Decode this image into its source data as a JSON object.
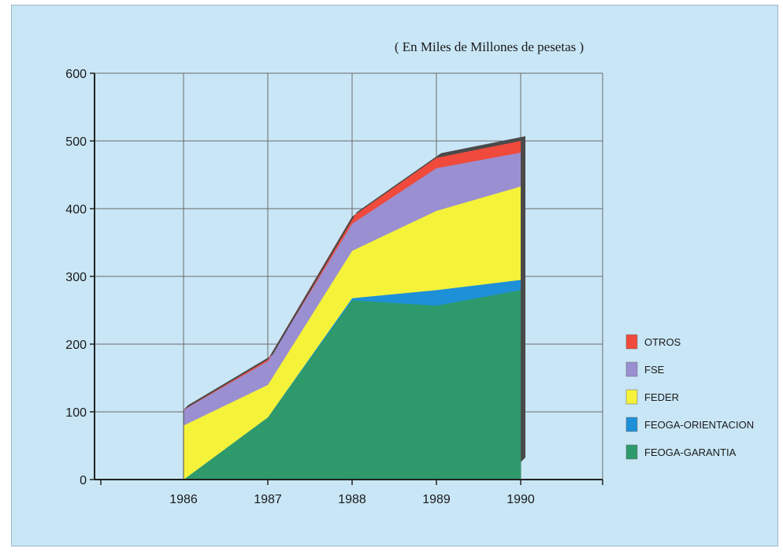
{
  "chart_data": {
    "type": "area",
    "stacked": true,
    "subtitle": "( En Miles de Millones de pesetas )",
    "x": [
      "1986",
      "1987",
      "1988",
      "1989",
      "1990"
    ],
    "ylim": [
      0,
      600
    ],
    "yticks": [
      "0",
      "100",
      "200",
      "300",
      "400",
      "500",
      "600"
    ],
    "grid": true,
    "legend_position": "right",
    "series": [
      {
        "name": "FEOGA-GARANTIA",
        "color": "#2e9a6c",
        "values": [
          0,
          92,
          265,
          257,
          280
        ]
      },
      {
        "name": "FEOGA-ORIENTACION",
        "color": "#1e90d8",
        "values": [
          0,
          0,
          3,
          23,
          15
        ]
      },
      {
        "name": "FEDER",
        "color": "#f5f23a",
        "values": [
          80,
          48,
          70,
          117,
          138
        ]
      },
      {
        "name": "FSE",
        "color": "#9a8fd0",
        "values": [
          23,
          35,
          40,
          63,
          50
        ]
      },
      {
        "name": "OTROS",
        "color": "#ef4a3c",
        "values": [
          0,
          2,
          10,
          15,
          17
        ]
      }
    ],
    "legend_order": [
      "OTROS",
      "FSE",
      "FEDER",
      "FEOGA-ORIENTACION",
      "FEOGA-GARANTIA"
    ]
  }
}
